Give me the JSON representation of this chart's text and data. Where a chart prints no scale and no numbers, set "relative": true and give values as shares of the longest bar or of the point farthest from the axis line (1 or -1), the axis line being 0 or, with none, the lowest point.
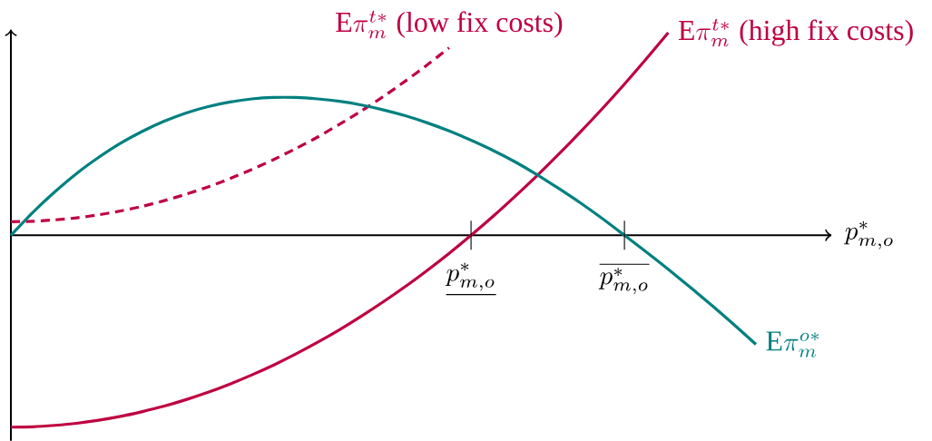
{
  "chart_data": {
    "type": "line",
    "relative": true,
    "line_style": "solid",
    "xlabel": "p^{*}_{m,o}",
    "categories": [
      null,
      null,
      null,
      null,
      null,
      null,
      null,
      null,
      null,
      null,
      null,
      null,
      null,
      null,
      null,
      null,
      null,
      null,
      null,
      null,
      null,
      "\\underline{p^{*}_{m,o}}",
      null,
      null,
      null,
      null,
      null,
      null,
      "\\overline{p^{*}_{m,o}}",
      null,
      null,
      null,
      null,
      null,
      null,
      null,
      null,
      null
    ],
    "series": [
      {
        "name": "\\mathrm{E}\\pi^{t*}_{m}\\ \\text{(low fix costs)}",
        "color": "#bf0040",
        "line_style": "dashed",
        "values": [
          0.067,
          0.069,
          0.076,
          0.086,
          0.101,
          0.12,
          0.143,
          0.171,
          0.203,
          0.239,
          0.28,
          0.325,
          0.374,
          0.428,
          0.485,
          0.548,
          0.614,
          0.685,
          0.761,
          0.841,
          0.925,
          null,
          null,
          null,
          null,
          null,
          null,
          null,
          null,
          null,
          null,
          null,
          null,
          null,
          null,
          null,
          null,
          null
        ]
      },
      {
        "name": "\\mathrm{E}\\pi^{t*}_{m}\\ \\text{(high fix costs)}",
        "color": "#bf0040",
        "values": [
          -0.947,
          -0.945,
          -0.938,
          -0.928,
          -0.913,
          -0.894,
          -0.87,
          -0.843,
          -0.811,
          -0.775,
          -0.734,
          -0.689,
          -0.64,
          -0.586,
          -0.528,
          -0.466,
          -0.399,
          -0.328,
          -0.253,
          -0.173,
          -0.089,
          0,
          0.093,
          0.191,
          0.293,
          0.4,
          0.511,
          0.626,
          0.746,
          0.871,
          1.0,
          null,
          null,
          null,
          null,
          null,
          null,
          null
        ]
      },
      {
        "name": "\\mathrm{E}\\pi^{o*}_{m}",
        "color": "#008080",
        "values": [
          0,
          0.113,
          0.214,
          0.305,
          0.384,
          0.454,
          0.513,
          0.563,
          0.604,
          0.635,
          0.658,
          0.673,
          0.68,
          0.68,
          0.673,
          0.661,
          0.643,
          0.619,
          0.59,
          0.555,
          0.515,
          0.469,
          0.419,
          0.363,
          0.3,
          0.231,
          0.159,
          0.082,
          0,
          -0.083,
          -0.168,
          -0.256,
          -0.347,
          -0.441,
          -0.538,
          null,
          null,
          null
        ]
      }
    ]
  }
}
